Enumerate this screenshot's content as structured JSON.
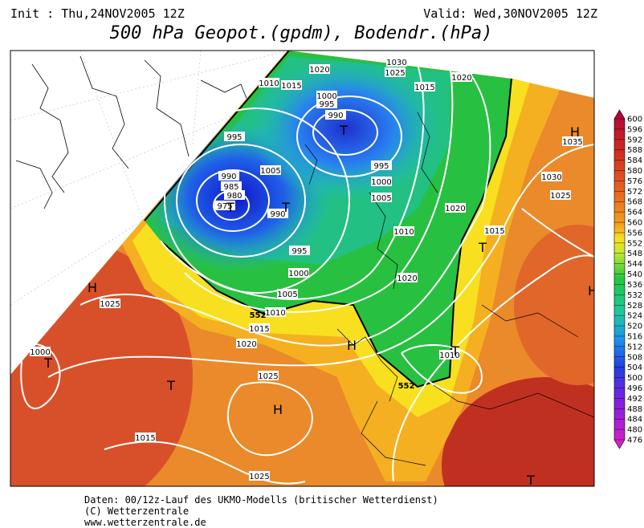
{
  "header": {
    "init": "Init : Thu,24NOV2005 12Z",
    "valid": "Valid: Wed,30NOV2005 12Z",
    "title": "500 hPa Geopot.(gpdm), Bodendr.(hPa)"
  },
  "map": {
    "isobar_labels": [
      "1030",
      "1025",
      "1020",
      "1020",
      "1010",
      "1015",
      "1015",
      "1000",
      "995",
      "990",
      "995",
      "1005",
      "990",
      "985",
      "980",
      "975",
      "990",
      "995",
      "1000",
      "1005",
      "1020",
      "1010",
      "995",
      "1000",
      "1005",
      "1020",
      "1010",
      "1015",
      "1020",
      "1025",
      "1000",
      "1025",
      "1015",
      "1025",
      "1010",
      "1015",
      "1035",
      "1030",
      "1025"
    ],
    "geopotential_labels": [
      "552",
      "552"
    ],
    "centers": [
      "H",
      "T",
      "T",
      "H",
      "H",
      "T",
      "T",
      "T",
      "T",
      "T",
      "H",
      "T",
      "H"
    ]
  },
  "colorbar": {
    "labels": [
      600,
      596,
      592,
      588,
      584,
      580,
      576,
      572,
      568,
      564,
      560,
      556,
      552,
      548,
      544,
      540,
      536,
      532,
      528,
      524,
      520,
      516,
      512,
      508,
      504,
      500,
      496,
      492,
      488,
      484,
      480,
      476
    ]
  },
  "footer": {
    "lines": [
      "Daten: 00/12z-Lauf des UKMO-Modells (britischer Wetterdienst)",
      "(C) Wetterzentrale",
      "www.wetterzentrale.de"
    ]
  }
}
